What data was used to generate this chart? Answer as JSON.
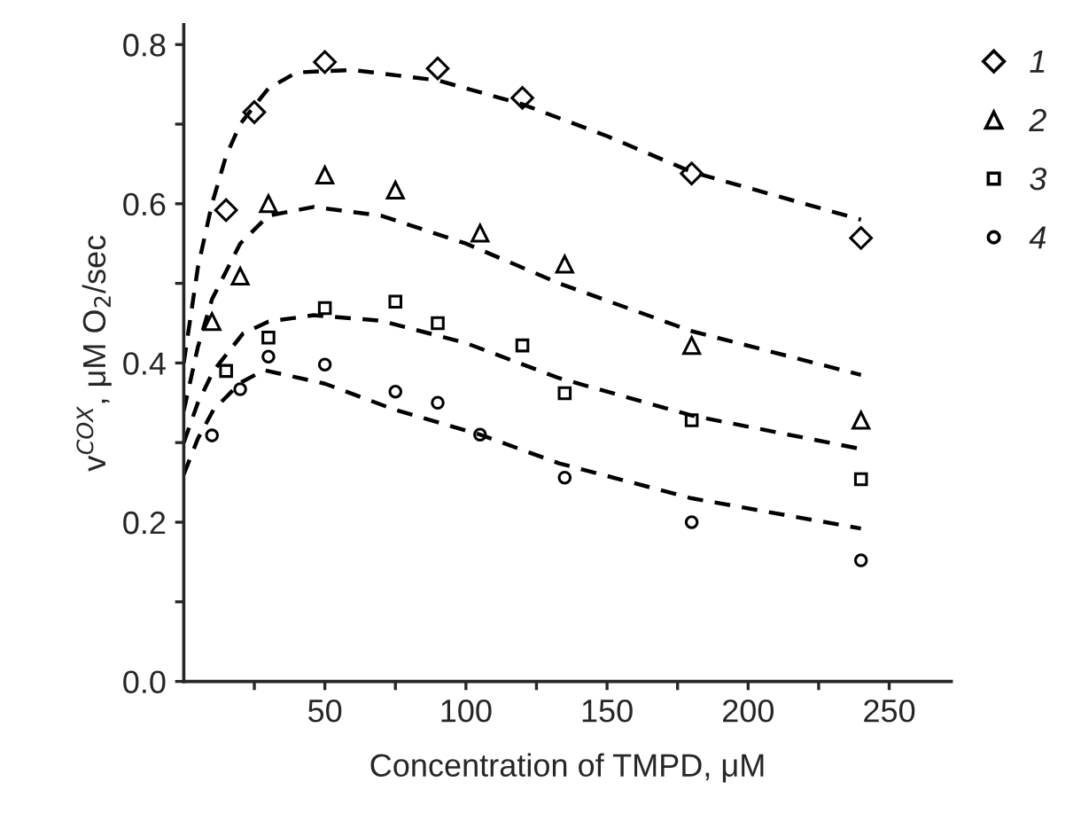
{
  "chart_data": {
    "type": "scatter",
    "xlabel": "Concentration of TMPD, μM",
    "ylabel": "v$^{COX}$, μM O$_{2}$/sec",
    "xlim": [
      0,
      272
    ],
    "ylim": [
      0,
      0.825
    ],
    "xticks": [
      {
        "value": 25,
        "label": null
      },
      50,
      {
        "value": 75,
        "label": null
      },
      100,
      {
        "value": 125,
        "label": null
      },
      150,
      {
        "value": 175,
        "label": null
      },
      200,
      {
        "value": 225,
        "label": null
      },
      250
    ],
    "yticks": [
      {
        "value": 0,
        "label": "0.0"
      },
      {
        "value": 0.1,
        "label": null
      },
      0.2,
      {
        "value": 0.3,
        "label": null
      },
      0.4,
      {
        "value": 0.5,
        "label": null
      },
      0.6,
      {
        "value": 0.7,
        "label": null
      },
      0.8
    ],
    "grid": false,
    "legend": "top right",
    "series": [
      {
        "name": "1",
        "marker": "diamond",
        "color": "#000000",
        "x": [
          15,
          25,
          50,
          90,
          120,
          180,
          240
        ],
        "values": [
          0.592,
          0.715,
          0.778,
          0.77,
          0.733,
          0.638,
          0.557
        ]
      },
      {
        "name": "2",
        "marker": "triangle",
        "color": "#000000",
        "x": [
          10,
          20,
          30,
          50,
          75,
          105,
          135,
          180,
          240
        ],
        "values": [
          0.452,
          0.509,
          0.6,
          0.636,
          0.617,
          0.563,
          0.524,
          0.422,
          0.328
        ]
      },
      {
        "name": "3",
        "marker": "square",
        "color": "#000000",
        "x": [
          15,
          30,
          50,
          75,
          90,
          120,
          135,
          180,
          240
        ],
        "values": [
          0.39,
          0.432,
          0.469,
          0.477,
          0.45,
          0.422,
          0.362,
          0.328,
          0.254
        ]
      },
      {
        "name": "4",
        "marker": "circle",
        "color": "#000000",
        "x": [
          10,
          20,
          30,
          50,
          75,
          90,
          105,
          135,
          180,
          240
        ],
        "values": [
          0.309,
          0.367,
          0.408,
          0.398,
          0.364,
          0.35,
          0.31,
          0.256,
          0.2,
          0.152
        ]
      },
      {
        "type": "line",
        "line_style": "dashed",
        "color": "#000000",
        "x": [
          0,
          5,
          10,
          15,
          20,
          30,
          40,
          60,
          90,
          120,
          150,
          180,
          210,
          240
        ],
        "values": [
          0.4,
          0.52,
          0.6,
          0.66,
          0.7,
          0.745,
          0.765,
          0.768,
          0.755,
          0.725,
          0.685,
          0.64,
          0.61,
          0.58
        ]
      },
      {
        "type": "line",
        "line_style": "dashed",
        "color": "#000000",
        "x": [
          0,
          5,
          10,
          20,
          30,
          46,
          70,
          100,
          133,
          180,
          240
        ],
        "values": [
          0.34,
          0.42,
          0.48,
          0.55,
          0.585,
          0.596,
          0.585,
          0.55,
          0.5,
          0.44,
          0.385
        ]
      },
      {
        "type": "line",
        "line_style": "dashed",
        "color": "#000000",
        "x": [
          0,
          5,
          10.5,
          21,
          30,
          46,
          70,
          100,
          133,
          180,
          240
        ],
        "values": [
          0.3,
          0.35,
          0.39,
          0.437,
          0.452,
          0.46,
          0.453,
          0.425,
          0.381,
          0.334,
          0.292
        ]
      },
      {
        "type": "line",
        "line_style": "dashed",
        "color": "#000000",
        "x": [
          0,
          5,
          10.5,
          20,
          28.4,
          50,
          75,
          105,
          133,
          180,
          240
        ],
        "values": [
          0.26,
          0.305,
          0.341,
          0.375,
          0.391,
          0.374,
          0.341,
          0.31,
          0.274,
          0.23,
          0.192
        ]
      }
    ]
  }
}
